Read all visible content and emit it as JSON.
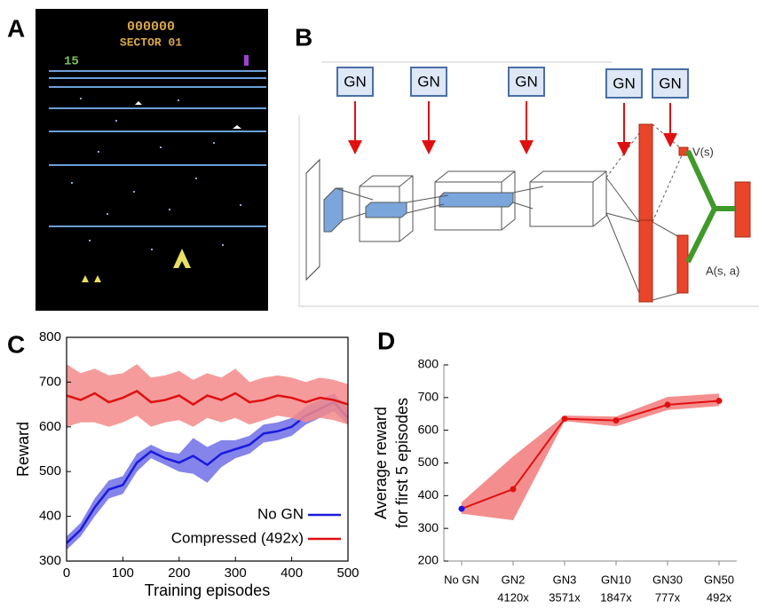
{
  "panels": [
    "A",
    "B",
    "C",
    "D"
  ],
  "game": {
    "score": "000000",
    "sector": "SECTOR 01",
    "lives": "15"
  },
  "network": {
    "gn_labels": [
      "GN",
      "GN",
      "GN",
      "GN",
      "GN"
    ],
    "value_label": "V(s)",
    "advantage_label": "A(s, a)"
  },
  "chart_data": [
    {
      "type": "line",
      "frame": true,
      "xlabel": "Training episodes",
      "ylabel": "Reward",
      "x": [
        0,
        25,
        50,
        75,
        100,
        125,
        150,
        175,
        200,
        225,
        250,
        275,
        300,
        325,
        350,
        375,
        400,
        425,
        450,
        475,
        500
      ],
      "xlim": [
        0,
        500
      ],
      "xticks": [
        0,
        100,
        200,
        300,
        400,
        500
      ],
      "ylim": [
        300,
        800
      ],
      "yticks": [
        300,
        400,
        500,
        600,
        700,
        800
      ],
      "legend": "lower right",
      "series": [
        {
          "name": "No GN",
          "color": "#1a1adc",
          "band_color": "#6f6fe6",
          "values": [
            340,
            370,
            420,
            460,
            470,
            520,
            545,
            530,
            520,
            535,
            515,
            540,
            550,
            560,
            585,
            590,
            600,
            625,
            640,
            655,
            620
          ],
          "lower": [
            325,
            355,
            400,
            440,
            450,
            500,
            530,
            515,
            500,
            495,
            475,
            510,
            530,
            540,
            565,
            570,
            580,
            605,
            620,
            635,
            605
          ],
          "upper": [
            355,
            385,
            440,
            480,
            490,
            540,
            560,
            545,
            540,
            575,
            555,
            570,
            570,
            580,
            605,
            610,
            620,
            645,
            660,
            675,
            640
          ]
        },
        {
          "name": "Compressed (492x)",
          "color": "#e01010",
          "band_color": "#f38a8a",
          "values": [
            670,
            660,
            675,
            655,
            665,
            680,
            655,
            660,
            670,
            650,
            670,
            660,
            675,
            655,
            660,
            670,
            665,
            655,
            665,
            660,
            650
          ],
          "lower": [
            600,
            610,
            610,
            600,
            610,
            625,
            600,
            610,
            615,
            600,
            620,
            610,
            620,
            605,
            615,
            625,
            620,
            610,
            620,
            615,
            605
          ],
          "upper": [
            740,
            720,
            730,
            715,
            720,
            740,
            710,
            715,
            725,
            705,
            720,
            710,
            730,
            700,
            710,
            715,
            710,
            700,
            710,
            705,
            695
          ]
        }
      ]
    },
    {
      "type": "line",
      "frame": false,
      "ylabel": [
        "Average reward",
        "for first 5 episodes"
      ],
      "categories": [
        "No GN",
        "GN2",
        "GN3",
        "GN10",
        "GN30",
        "GN50"
      ],
      "sublabels": [
        null,
        "4120x",
        "3571x",
        "1847x",
        "777x",
        "492x"
      ],
      "ylim": [
        200,
        800
      ],
      "yticks": [
        200,
        300,
        400,
        500,
        600,
        700,
        800
      ],
      "series": [
        {
          "color": "#e01010",
          "band_color": "#f27a7a",
          "point_colors": [
            "#1a1adc",
            "#e01010",
            "#e01010",
            "#e01010",
            "#e01010",
            "#e01010"
          ],
          "values": [
            360,
            420,
            635,
            630,
            678,
            690
          ],
          "lower": [
            345,
            325,
            628,
            612,
            662,
            674
          ],
          "upper": [
            380,
            520,
            645,
            642,
            702,
            712
          ]
        }
      ]
    }
  ]
}
